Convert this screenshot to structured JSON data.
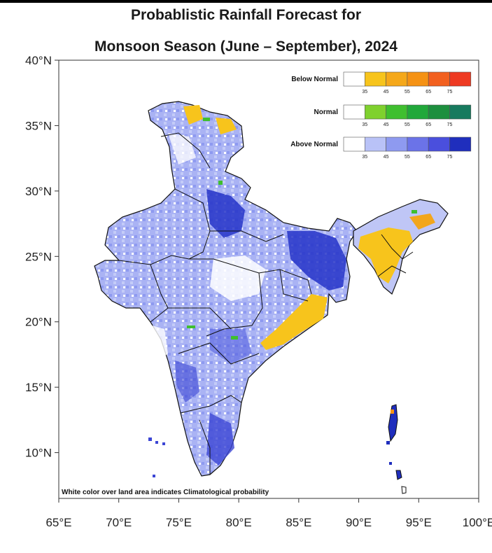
{
  "title": {
    "line1": "Probablistic Rainfall Forecast for",
    "line2": "Monsoon Season (June – September), 2024"
  },
  "axes": {
    "x_ticks": [
      "65°E",
      "70°E",
      "75°E",
      "80°E",
      "85°E",
      "90°E",
      "95°E",
      "100°E"
    ],
    "y_ticks": [
      "40°N",
      "35°N",
      "30°N",
      "25°N",
      "20°N",
      "15°N",
      "10°N"
    ],
    "lon_range": [
      65,
      100
    ],
    "lat_range": [
      6.5,
      40
    ]
  },
  "legend": {
    "placement": "top-right",
    "groups": [
      {
        "label": "Below Normal",
        "colors": [
          "#ffffff",
          "#f7c41c",
          "#f5a81a",
          "#f59214",
          "#f2601f",
          "#ee3a22"
        ]
      },
      {
        "label": "Normal",
        "colors": [
          "#ffffff",
          "#7fd12e",
          "#3fbf2f",
          "#21a83a",
          "#1d8f3e",
          "#177a5e"
        ]
      },
      {
        "label": "Above Normal",
        "colors": [
          "#ffffff",
          "#b9c2f7",
          "#8e9af0",
          "#6b73e8",
          "#4a4fdd",
          "#1f2ebd"
        ]
      }
    ],
    "ticks": [
      "35",
      "45",
      "55",
      "65",
      "75"
    ]
  },
  "note": "White color over land area indicates Climatological probability",
  "colors": {
    "above_light": "#b9c2f7",
    "above_mid": "#8e9af0",
    "above_dark": "#1f2ebd",
    "below": "#f7c41c",
    "normal": "#3fbf2f"
  }
}
